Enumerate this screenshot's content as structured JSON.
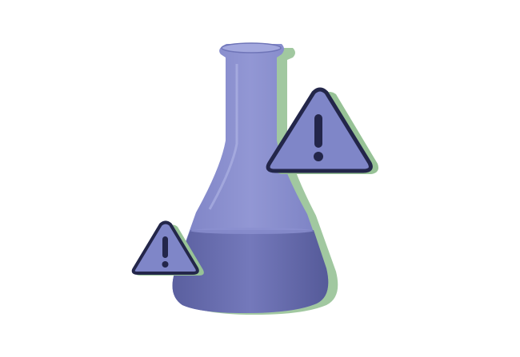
{
  "scene": {
    "subject": "flask-icon",
    "badges": [
      "warning-icon",
      "warning-icon"
    ]
  },
  "colors": {
    "background": "#ffffff",
    "flask_fill": "#8488c9",
    "flask_liquid": "#6a6fb0",
    "flask_liquid_dark": "#585d9e",
    "flask_shadow_green": "#97c296",
    "triangle_fill": "#7f86c8",
    "triangle_stroke": "#23264a",
    "exclamation": "#23264a"
  }
}
